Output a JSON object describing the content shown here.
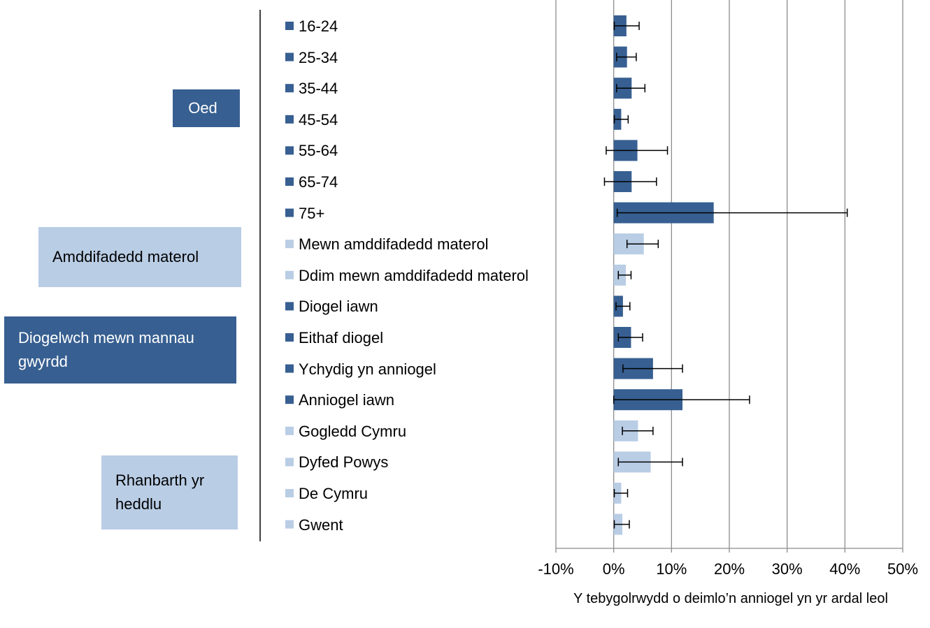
{
  "chart_data": {
    "type": "bar",
    "orientation": "horizontal",
    "x_label": "Y tebygolrwydd o deimlo’n anniogel yn yr ardal leol",
    "xlim": [
      -10,
      50
    ],
    "xticks": [
      {
        "value": -10,
        "label": "-10%"
      },
      {
        "value": 0,
        "label": "0%"
      },
      {
        "value": 10,
        "label": "10%"
      },
      {
        "value": 20,
        "label": "20%"
      },
      {
        "value": 30,
        "label": "30%"
      },
      {
        "value": 40,
        "label": "40%"
      },
      {
        "value": 50,
        "label": "50%"
      }
    ],
    "grid": true,
    "groups": [
      {
        "name": "Oed",
        "color": "#375f91",
        "categories": [
          "16-24",
          "25-34",
          "35-44",
          "45-54",
          "55-64",
          "65-74",
          "75+"
        ],
        "values": [
          2.2,
          2.3,
          3.1,
          1.3,
          4.1,
          3.1,
          17.3
        ],
        "lower": [
          0.1,
          0.5,
          0.5,
          0.1,
          -1.3,
          -1.6,
          0.6
        ],
        "upper": [
          4.4,
          3.9,
          5.4,
          2.5,
          9.3,
          7.4,
          40.4
        ]
      },
      {
        "name": "Amddifadedd materol",
        "color": "#b9cde5",
        "categories": [
          "Mewn amddifadedd materol",
          "Ddim mewn amddifadedd materol"
        ],
        "values": [
          5.2,
          2.1
        ],
        "lower": [
          2.3,
          0.8
        ],
        "upper": [
          7.7,
          3.0
        ]
      },
      {
        "name": "Diogelwch mewn mannau gwyrdd",
        "color": "#375f91",
        "categories": [
          "Diogel iawn",
          "Eithaf diogel",
          "Ychydig yn anniogel",
          "Anniogel iawn"
        ],
        "values": [
          1.6,
          3.0,
          6.8,
          11.9
        ],
        "lower": [
          0.4,
          0.8,
          1.6,
          0
        ],
        "upper": [
          2.8,
          5.0,
          11.9,
          23.5
        ]
      },
      {
        "name": "Rhanbarth yr heddlu",
        "color": "#b9cde5",
        "categories": [
          "Gogledd Cymru",
          "Dyfed Powys",
          "De Cymru",
          "Gwent"
        ],
        "values": [
          4.2,
          6.4,
          1.3,
          1.5
        ],
        "lower": [
          1.5,
          0.8,
          0.1,
          0.1
        ],
        "upper": [
          6.8,
          11.9,
          2.4,
          2.7
        ]
      }
    ]
  }
}
